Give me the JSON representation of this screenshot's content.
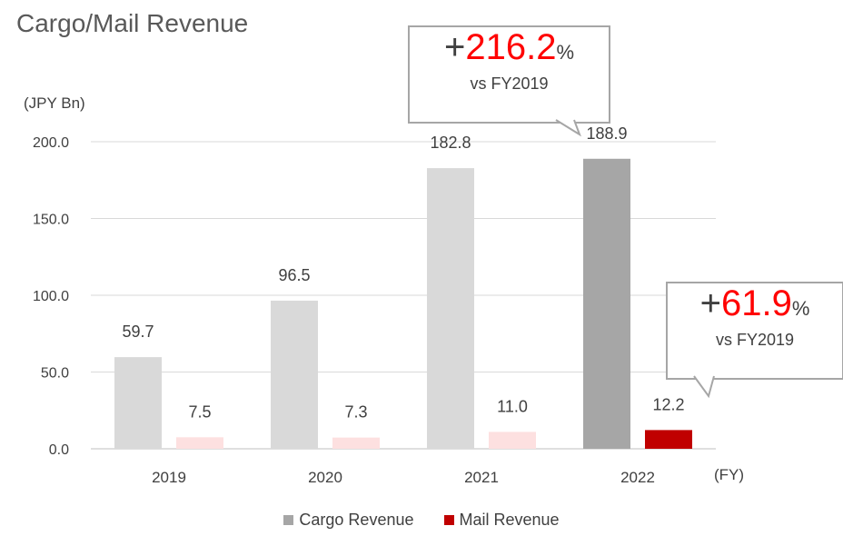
{
  "title": "Cargo/Mail Revenue",
  "unit_label": "(JPY Bn)",
  "x_unit_label": "(FY)",
  "colors": {
    "cargo": "#d9d9d9",
    "mail": "#fde0e0",
    "cargo_highlight": "#a6a6a6",
    "mail_highlight": "#c00000",
    "accent_red": "#ff0000"
  },
  "chart_data": {
    "type": "bar",
    "title": "Cargo/Mail Revenue",
    "ylabel": "(JPY Bn)",
    "xlabel": "(FY)",
    "categories": [
      "2019",
      "2020",
      "2021",
      "2022"
    ],
    "series": [
      {
        "name": "Cargo Revenue",
        "values": [
          59.7,
          96.5,
          182.8,
          188.9
        ],
        "labels": [
          "59.7",
          "96.5",
          "182.8",
          "188.9"
        ]
      },
      {
        "name": "Mail Revenue",
        "values": [
          7.5,
          7.3,
          11.0,
          12.2
        ],
        "labels": [
          "7.5",
          "7.3",
          "11.0",
          "12.2"
        ]
      }
    ],
    "ylim": [
      0,
      200
    ],
    "yticks": [
      0,
      50,
      100,
      150,
      200
    ],
    "ytick_labels": [
      "0.0",
      "50.0",
      "100.0",
      "150.0",
      "200.0"
    ],
    "grid": true,
    "legend": "bottom",
    "highlight_category": "2022"
  },
  "callouts": [
    {
      "plus": "+",
      "value": "216.2",
      "percent": "%",
      "sub": "vs FY2019"
    },
    {
      "plus": "+",
      "value": "61.9",
      "percent": "%",
      "sub": "vs FY2019"
    }
  ],
  "legend": [
    {
      "label": "Cargo Revenue",
      "color": "#a6a6a6"
    },
    {
      "label": "Mail Revenue",
      "color": "#c00000"
    }
  ]
}
